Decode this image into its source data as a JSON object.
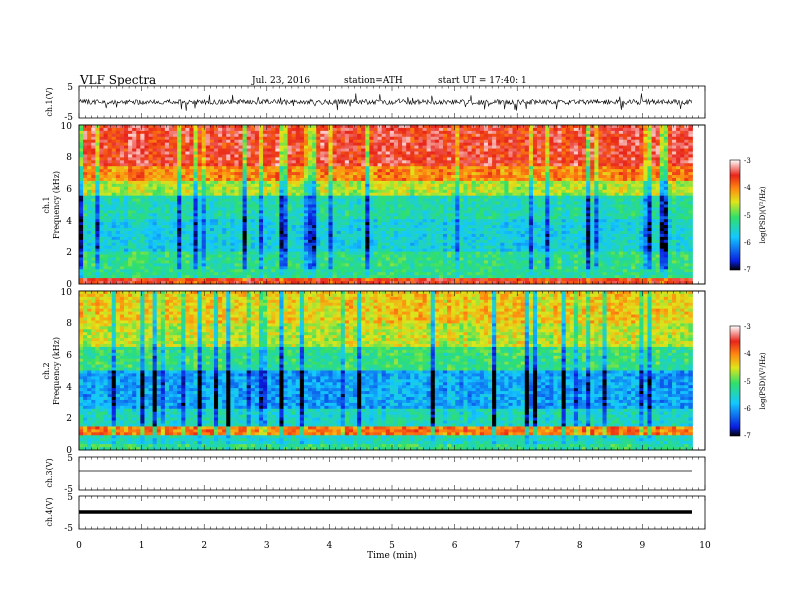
{
  "header": {
    "title": "VLF  Spectra",
    "date": "Jul.  23,  2016",
    "station": "station=ATH",
    "start": "start  UT  =   17:40: 1"
  },
  "chart_data": [
    {
      "type": "line",
      "ylabel": "ch.1(V)",
      "ylim": [
        -5,
        5
      ],
      "y_ticks": [
        "5",
        "-5"
      ],
      "xlim": [
        0,
        10
      ]
    },
    {
      "type": "heatmap",
      "ylabel_channel": "ch.1",
      "ylabel": "Frequency  (kHz)",
      "ylim": [
        0,
        10
      ],
      "y_ticks": [
        "10",
        "8",
        "6",
        "4",
        "2",
        "0"
      ],
      "xlim": [
        0,
        10
      ],
      "colorbar": {
        "label": "log(PSD)(V²/Hz)",
        "range": [
          -7,
          -3
        ],
        "ticks": [
          "-3",
          "-4",
          "-5",
          "-6",
          "-7"
        ],
        "colors": [
          "#000000",
          "#0a1de0",
          "#14c8ff",
          "#30e06a",
          "#dfe61a",
          "#ff8a10",
          "#e8241a",
          "#ffffff"
        ]
      }
    },
    {
      "type": "heatmap",
      "ylabel_channel": "ch.2",
      "ylabel": "Frequency  (kHz)",
      "ylim": [
        0,
        10
      ],
      "y_ticks": [
        "10",
        "8",
        "6",
        "4",
        "2",
        "0"
      ],
      "xlim": [
        0,
        10
      ],
      "colorbar": {
        "label": "log(PSD)(V²/Hz)",
        "range": [
          -7,
          -3
        ],
        "ticks": [
          "-3",
          "-4",
          "-5",
          "-6",
          "-7"
        ]
      }
    },
    {
      "type": "line",
      "ylabel": "ch.3(V)",
      "ylim": [
        -5,
        5
      ],
      "y_ticks": [
        "5",
        "-5"
      ],
      "xlim": [
        0,
        10
      ]
    },
    {
      "type": "line",
      "ylabel": "ch.4(V)",
      "ylim": [
        -5,
        5
      ],
      "y_ticks": [
        "5",
        "-5"
      ],
      "xlim": [
        0,
        10
      ]
    }
  ],
  "x_axis": {
    "label": "Time  (min)",
    "range": [
      0,
      10
    ],
    "ticks": [
      "0",
      "1",
      "2",
      "3",
      "4",
      "5",
      "6",
      "7",
      "8",
      "9",
      "10"
    ],
    "data_end": 9.8
  }
}
